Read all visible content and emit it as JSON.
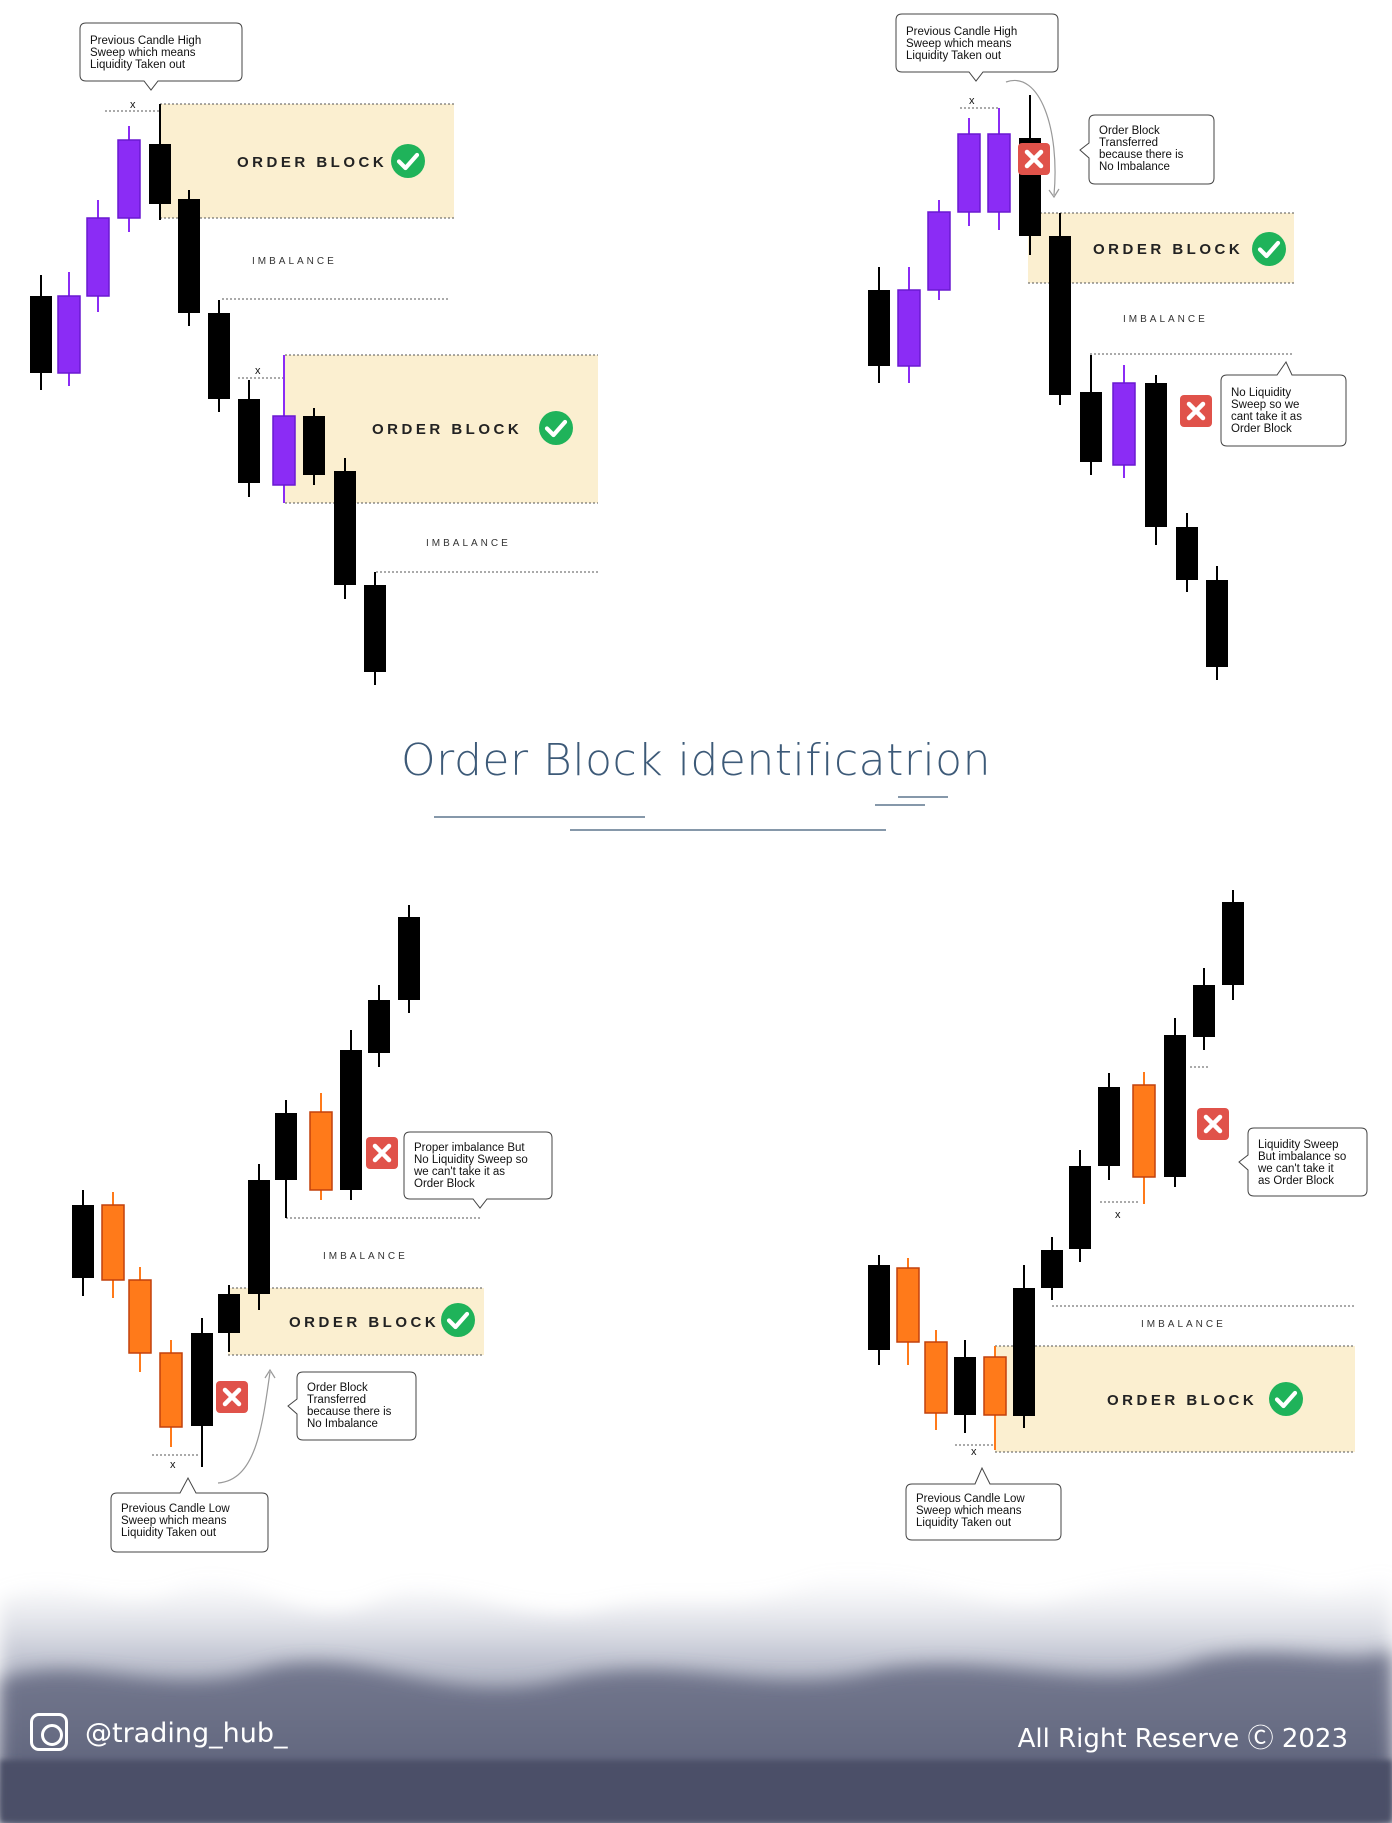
{
  "title": "Order Block identificatrion",
  "footer": {
    "handle": "@trading_hub_",
    "copyright": "All Right Reserve Ⓒ 2023",
    "icon": "instagram-icon"
  },
  "colors": {
    "bull_purple": "#8b2cf5",
    "bull_orange": "#ff7a1a",
    "bear": "#000000",
    "zone": "#fbefd0",
    "check": "#1fb35a",
    "cross": "#e0524a",
    "title": "#3d5a78"
  },
  "labels": {
    "order_block": "ORDER BLOCK",
    "imbalance": "IMBALANCE",
    "sweep_mark": "x"
  },
  "panels": {
    "top_left": {
      "callout": [
        "Previous Candle High",
        "Sweep which means",
        "Liquidity Taken out"
      ]
    },
    "top_right": {
      "callout_sweep": [
        "Previous Candle High",
        "Sweep which means",
        "Liquidity Taken out"
      ],
      "callout_transfer": [
        "Order Block",
        "Transferred",
        "because there is",
        "No Imbalance"
      ],
      "callout_no_sweep": [
        "No Liquidity",
        "Sweep so we",
        "cant take it as",
        "Order Block"
      ]
    },
    "bottom_left": {
      "callout_no_sweep": [
        "Proper imbalance But",
        "No Liquidity Sweep so",
        "we can't take it as",
        "Order Block"
      ],
      "callout_transfer": [
        "Order Block",
        "Transferred",
        "because there is",
        "No Imbalance"
      ],
      "callout_sweep": [
        "Previous Candle Low",
        "Sweep which means",
        "Liquidity Taken out"
      ]
    },
    "bottom_right": {
      "callout_no_imb": [
        "Liquidity Sweep",
        "But imbalance so",
        "we can't take it",
        "as Order Block"
      ],
      "callout_sweep": [
        "Previous Candle Low",
        "Sweep which means",
        "Liquidity Taken out"
      ]
    }
  }
}
